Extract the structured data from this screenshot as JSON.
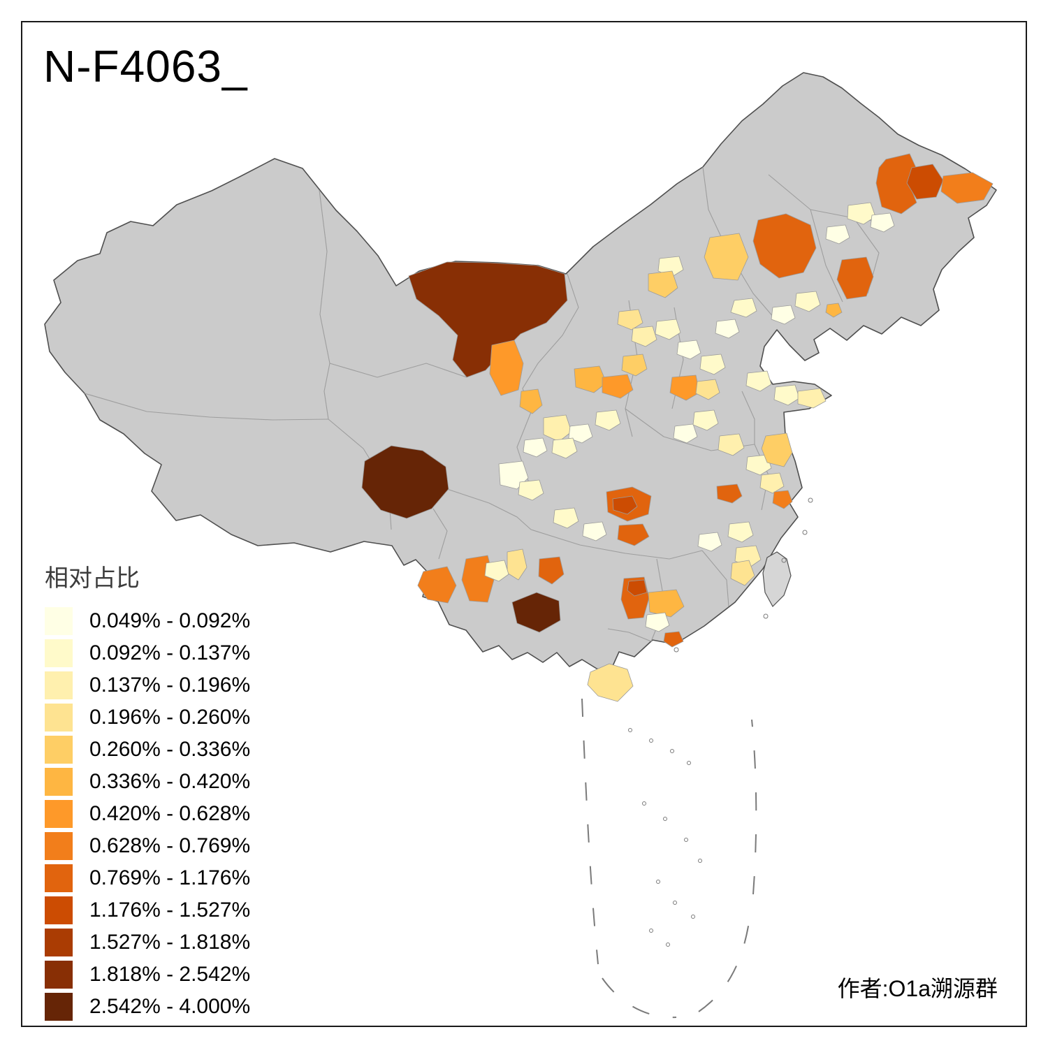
{
  "title": "N-F4063_",
  "attribution": "作者:O1a溯源群",
  "legend": {
    "title": "相对占比",
    "items": [
      {
        "label": "0.049% - 0.092%",
        "color": "#FFFFE5"
      },
      {
        "label": "0.092% - 0.137%",
        "color": "#FFFACA"
      },
      {
        "label": "0.137% - 0.196%",
        "color": "#FFF0AE"
      },
      {
        "label": "0.196% - 0.260%",
        "color": "#FEE391"
      },
      {
        "label": "0.260% - 0.336%",
        "color": "#FECE65"
      },
      {
        "label": "0.336% - 0.420%",
        "color": "#FEB642"
      },
      {
        "label": "0.420% - 0.628%",
        "color": "#FE9929"
      },
      {
        "label": "0.628% - 0.769%",
        "color": "#F27E1B"
      },
      {
        "label": "0.769% - 1.176%",
        "color": "#E1640E"
      },
      {
        "label": "1.176% - 1.527%",
        "color": "#CC4C02"
      },
      {
        "label": "1.527% - 1.818%",
        "color": "#AA3C03"
      },
      {
        "label": "1.818% - 2.542%",
        "color": "#882F05"
      },
      {
        "label": "2.542% - 4.000%",
        "color": "#662506"
      }
    ]
  },
  "map": {
    "colors": {
      "background": "#ffffff",
      "frame": "#1a1a1a",
      "text": "#000000",
      "legend_title": "#3c3c3c",
      "land": "#cbcbcb",
      "outline": "#4f4f4f",
      "province": "#9b9b9b",
      "taiwan": "#d6d6d6",
      "water_dash": "#7a7a7a"
    }
  }
}
